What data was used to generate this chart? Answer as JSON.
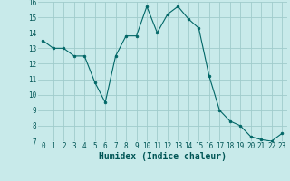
{
  "x": [
    0,
    1,
    2,
    3,
    4,
    5,
    6,
    7,
    8,
    9,
    10,
    11,
    12,
    13,
    14,
    15,
    16,
    17,
    18,
    19,
    20,
    21,
    22,
    23
  ],
  "y": [
    13.5,
    13.0,
    13.0,
    12.5,
    12.5,
    10.8,
    9.5,
    12.5,
    13.8,
    13.8,
    15.7,
    14.0,
    15.2,
    15.7,
    14.9,
    14.3,
    11.2,
    9.0,
    8.3,
    8.0,
    7.3,
    7.1,
    7.0,
    7.5
  ],
  "line_color": "#006666",
  "marker": "o",
  "marker_size": 2,
  "bg_color": "#c8eaea",
  "grid_color": "#a0cccc",
  "xlabel": "Humidex (Indice chaleur)",
  "xlim": [
    -0.5,
    23.5
  ],
  "ylim": [
    7,
    16
  ],
  "yticks": [
    7,
    8,
    9,
    10,
    11,
    12,
    13,
    14,
    15,
    16
  ],
  "xticks": [
    0,
    1,
    2,
    3,
    4,
    5,
    6,
    7,
    8,
    9,
    10,
    11,
    12,
    13,
    14,
    15,
    16,
    17,
    18,
    19,
    20,
    21,
    22,
    23
  ],
  "tick_label_fontsize": 5.5,
  "xlabel_fontsize": 7.0,
  "label_color": "#005555"
}
